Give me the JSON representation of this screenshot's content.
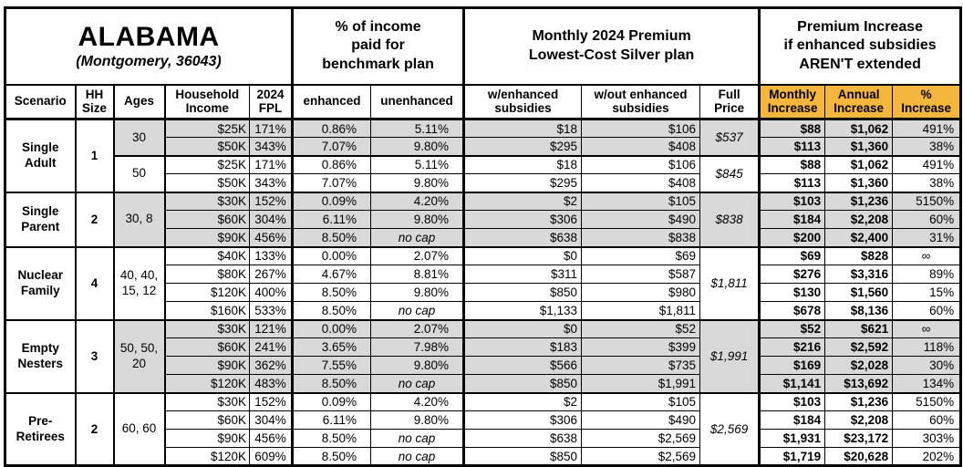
{
  "title": {
    "state": "ALABAMA",
    "subtitle": "(Montgomery, 36043)"
  },
  "colors": {
    "accent": "#F5B63E",
    "stripe": "#D9D9D9",
    "border": "#000000"
  },
  "header": {
    "groups": {
      "income_share": "% of income\npaid for\nbenchmark plan",
      "premium": "Monthly 2024 Premium\nLowest-Cost Silver plan",
      "increase": "Premium Increase\nif enhanced subsidies\nAREN'T extended"
    },
    "columns": {
      "scenario": "Scenario",
      "hh_size": "HH\nSize",
      "ages": "Ages",
      "income": "Household\nIncome",
      "fpl": "2024\nFPL",
      "enhanced": "enhanced",
      "unenhanced": "unenhanced",
      "w_enhanced": "w/enhanced\nsubsidies",
      "wo_enhanced": "w/out enhanced\nsubsidies",
      "full_price": "Full\nPrice",
      "monthly_increase": "Monthly\nIncrease",
      "annual_increase": "Annual\nIncrease",
      "pct_increase": "%\nIncrease"
    }
  },
  "chart_data": {
    "type": "table",
    "row_fields": [
      "income",
      "fpl",
      "enhanced",
      "unenhanced",
      "w_enhanced",
      "wo_enhanced",
      "monthly_increase",
      "annual_increase",
      "pct_increase"
    ],
    "sections": [
      {
        "scenario": "Single\nAdult",
        "hh_size": "1",
        "subgroups": [
          {
            "ages": "30",
            "shaded": true,
            "full_price": "$537",
            "rows": [
              [
                "$25K",
                "171%",
                "0.86%",
                "5.11%",
                "$18",
                "$106",
                "$88",
                "$1,062",
                "491%"
              ],
              [
                "$50K",
                "343%",
                "7.07%",
                "9.80%",
                "$295",
                "$408",
                "$113",
                "$1,360",
                "38%"
              ]
            ]
          },
          {
            "ages": "50",
            "shaded": false,
            "full_price": "$845",
            "rows": [
              [
                "$25K",
                "171%",
                "0.86%",
                "5.11%",
                "$18",
                "$106",
                "$88",
                "$1,062",
                "491%"
              ],
              [
                "$50K",
                "343%",
                "7.07%",
                "9.80%",
                "$295",
                "$408",
                "$113",
                "$1,360",
                "38%"
              ]
            ]
          }
        ]
      },
      {
        "scenario": "Single\nParent",
        "hh_size": "2",
        "subgroups": [
          {
            "ages": "30, 8",
            "shaded": true,
            "full_price": "$838",
            "rows": [
              [
                "$30K",
                "152%",
                "0.09%",
                "4.20%",
                "$2",
                "$105",
                "$103",
                "$1,236",
                "5150%"
              ],
              [
                "$60K",
                "304%",
                "6.11%",
                "9.80%",
                "$306",
                "$490",
                "$184",
                "$2,208",
                "60%"
              ],
              [
                "$90K",
                "456%",
                "8.50%",
                "no cap",
                "$638",
                "$838",
                "$200",
                "$2,400",
                "31%"
              ]
            ]
          }
        ]
      },
      {
        "scenario": "Nuclear\nFamily",
        "hh_size": "4",
        "subgroups": [
          {
            "ages": "40, 40,\n15, 12",
            "shaded": false,
            "full_price": "$1,811",
            "rows": [
              [
                "$40K",
                "133%",
                "0.00%",
                "2.07%",
                "$0",
                "$69",
                "$69",
                "$828",
                "∞"
              ],
              [
                "$80K",
                "267%",
                "4.67%",
                "8.81%",
                "$311",
                "$587",
                "$276",
                "$3,316",
                "89%"
              ],
              [
                "$120K",
                "400%",
                "8.50%",
                "9.80%",
                "$850",
                "$980",
                "$130",
                "$1,560",
                "15%"
              ],
              [
                "$160K",
                "533%",
                "8.50%",
                "no cap",
                "$1,133",
                "$1,811",
                "$678",
                "$8,136",
                "60%"
              ]
            ]
          }
        ]
      },
      {
        "scenario": "Empty\nNesters",
        "hh_size": "3",
        "subgroups": [
          {
            "ages": "50, 50,\n20",
            "shaded": true,
            "full_price": "$1,991",
            "rows": [
              [
                "$30K",
                "121%",
                "0.00%",
                "2.07%",
                "$0",
                "$52",
                "$52",
                "$621",
                "∞"
              ],
              [
                "$60K",
                "241%",
                "3.65%",
                "7.98%",
                "$183",
                "$399",
                "$216",
                "$2,592",
                "118%"
              ],
              [
                "$90K",
                "362%",
                "7.55%",
                "9.80%",
                "$566",
                "$735",
                "$169",
                "$2,028",
                "30%"
              ],
              [
                "$120K",
                "483%",
                "8.50%",
                "no cap",
                "$850",
                "$1,991",
                "$1,141",
                "$13,692",
                "134%"
              ]
            ]
          }
        ]
      },
      {
        "scenario": "Pre-\nRetirees",
        "hh_size": "2",
        "subgroups": [
          {
            "ages": "60, 60",
            "shaded": false,
            "full_price": "$2,569",
            "rows": [
              [
                "$30K",
                "152%",
                "0.09%",
                "4.20%",
                "$2",
                "$105",
                "$103",
                "$1,236",
                "5150%"
              ],
              [
                "$60K",
                "304%",
                "6.11%",
                "9.80%",
                "$306",
                "$490",
                "$184",
                "$2,208",
                "60%"
              ],
              [
                "$90K",
                "456%",
                "8.50%",
                "no cap",
                "$638",
                "$2,569",
                "$1,931",
                "$23,172",
                "303%"
              ],
              [
                "$120K",
                "609%",
                "8.50%",
                "no cap",
                "$850",
                "$2,569",
                "$1,719",
                "$20,628",
                "202%"
              ]
            ]
          }
        ]
      }
    ]
  }
}
